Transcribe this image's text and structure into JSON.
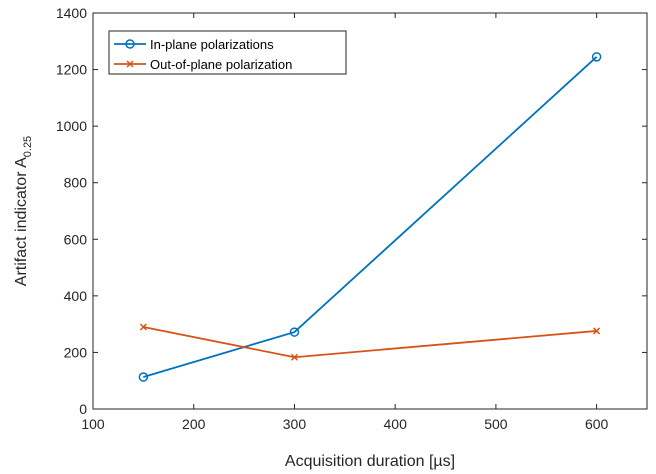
{
  "chart_data": {
    "type": "line",
    "xlabel": "Acquisition duration [µs]",
    "ylabel": {
      "main": "Artifact indicator A",
      "subscript": "0.25"
    },
    "xlim": [
      100,
      650
    ],
    "ylim": [
      0,
      1400
    ],
    "xticks": [
      100,
      200,
      300,
      400,
      500,
      600
    ],
    "yticks": [
      0,
      200,
      400,
      600,
      800,
      1000,
      1200,
      1400
    ],
    "grid": false,
    "legend_position": "top-left",
    "series": [
      {
        "name": "In-plane polarizations",
        "color": "#0072BD",
        "marker": "circle",
        "x": [
          150,
          300,
          600
        ],
        "y": [
          113,
          272,
          1245
        ]
      },
      {
        "name": "Out-of-plane polarization",
        "color": "#D95319",
        "marker": "x",
        "x": [
          150,
          300,
          600
        ],
        "y": [
          290,
          183,
          276
        ]
      }
    ]
  }
}
